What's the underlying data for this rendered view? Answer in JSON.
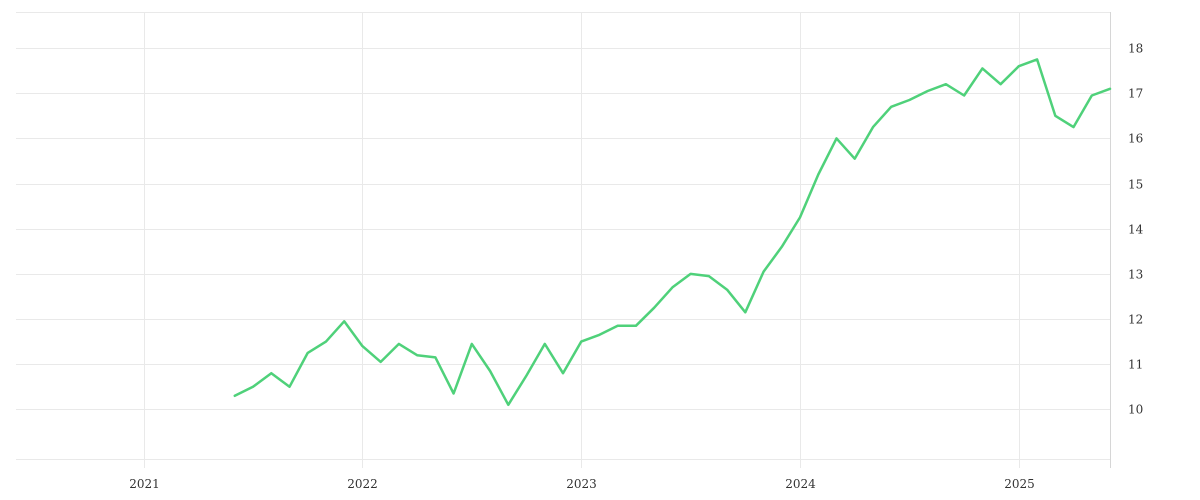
{
  "chart_data": {
    "type": "line",
    "title": "",
    "xlabel": "",
    "ylabel": "",
    "grid": true,
    "legend": "none",
    "y_axis_side": "right",
    "x_ticks": [
      "2021",
      "2022",
      "2023",
      "2024",
      "2025"
    ],
    "y_ticks": [
      "10",
      "11",
      "12",
      "13",
      "14",
      "15",
      "16",
      "17",
      "18"
    ],
    "xlim": [
      "2020-06",
      "2025-06"
    ],
    "ylim": [
      8.9,
      18.8
    ],
    "series": [
      {
        "color": "#4fd17a",
        "x": [
          "2021-06",
          "2021-07",
          "2021-08",
          "2021-09",
          "2021-10",
          "2021-11",
          "2021-12",
          "2022-01",
          "2022-02",
          "2022-03",
          "2022-04",
          "2022-05",
          "2022-06",
          "2022-07",
          "2022-08",
          "2022-09",
          "2022-10",
          "2022-11",
          "2022-12",
          "2023-01",
          "2023-02",
          "2023-03",
          "2023-04",
          "2023-05",
          "2023-06",
          "2023-07",
          "2023-08",
          "2023-09",
          "2023-10",
          "2023-11",
          "2023-12",
          "2024-01",
          "2024-02",
          "2024-03",
          "2024-04",
          "2024-05",
          "2024-06",
          "2024-07",
          "2024-08",
          "2024-09",
          "2024-10",
          "2024-11",
          "2024-12",
          "2025-01",
          "2025-02",
          "2025-03",
          "2025-04",
          "2025-05",
          "2025-06"
        ],
        "values": [
          10.3,
          10.5,
          10.8,
          10.5,
          11.25,
          11.5,
          11.95,
          11.4,
          11.05,
          11.45,
          11.2,
          11.15,
          10.35,
          11.45,
          10.85,
          10.1,
          10.75,
          11.45,
          10.8,
          11.5,
          11.65,
          11.85,
          11.85,
          12.25,
          12.7,
          13.0,
          12.95,
          12.65,
          12.15,
          13.05,
          13.6,
          14.25,
          15.2,
          16.0,
          15.55,
          16.25,
          16.7,
          16.85,
          17.05,
          17.2,
          16.95,
          17.55,
          17.2,
          17.6,
          17.75,
          16.5,
          16.25,
          16.95,
          17.1
        ]
      }
    ]
  }
}
